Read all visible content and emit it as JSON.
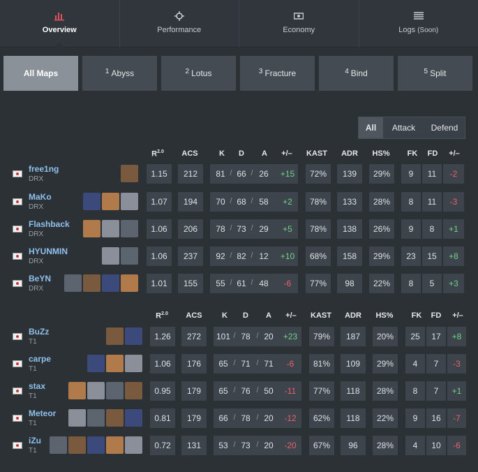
{
  "tabs": [
    {
      "label": "Overview"
    },
    {
      "label": "Performance"
    },
    {
      "label": "Economy"
    },
    {
      "label": "Logs",
      "note": "(Soon)"
    }
  ],
  "maps": [
    {
      "label": "All Maps"
    },
    {
      "num": "1",
      "label": "Abyss"
    },
    {
      "num": "2",
      "label": "Lotus"
    },
    {
      "num": "3",
      "label": "Fracture"
    },
    {
      "num": "4",
      "label": "Bind"
    },
    {
      "num": "5",
      "label": "Split"
    }
  ],
  "sides": [
    "All",
    "Attack",
    "Defend"
  ],
  "columns": [
    {
      "label": "R",
      "sup": "2.0"
    },
    "ACS",
    "K",
    "D",
    "A",
    "+/–",
    "KAST",
    "ADR",
    "HS%",
    "FK",
    "FD",
    "+/–"
  ],
  "kda_separator": "/",
  "teams": [
    {
      "players": [
        {
          "name": "free1ng",
          "team": "DRX",
          "stats": [
            "1.15",
            "212",
            "81",
            "66",
            "26",
            "+15",
            "72%",
            "139",
            "29%",
            "9",
            "11",
            "-2"
          ]
        },
        {
          "name": "MaKo",
          "team": "DRX",
          "stats": [
            "1.07",
            "194",
            "70",
            "68",
            "58",
            "+2",
            "78%",
            "133",
            "28%",
            "8",
            "11",
            "-3"
          ]
        },
        {
          "name": "Flashback",
          "team": "DRX",
          "stats": [
            "1.06",
            "206",
            "78",
            "73",
            "29",
            "+5",
            "78%",
            "138",
            "26%",
            "9",
            "8",
            "+1"
          ]
        },
        {
          "name": "HYUNMIN",
          "team": "DRX",
          "stats": [
            "1.06",
            "237",
            "92",
            "82",
            "12",
            "+10",
            "68%",
            "158",
            "29%",
            "23",
            "15",
            "+8"
          ]
        },
        {
          "name": "BeYN",
          "team": "DRX",
          "stats": [
            "1.01",
            "155",
            "55",
            "61",
            "48",
            "-6",
            "77%",
            "98",
            "22%",
            "8",
            "5",
            "+3"
          ]
        }
      ]
    },
    {
      "players": [
        {
          "name": "BuZz",
          "team": "T1",
          "stats": [
            "1.26",
            "272",
            "101",
            "78",
            "20",
            "+23",
            "79%",
            "187",
            "20%",
            "25",
            "17",
            "+8"
          ]
        },
        {
          "name": "carpe",
          "team": "T1",
          "stats": [
            "1.06",
            "176",
            "65",
            "71",
            "71",
            "-6",
            "81%",
            "109",
            "29%",
            "4",
            "7",
            "-3"
          ]
        },
        {
          "name": "stax",
          "team": "T1",
          "stats": [
            "0.95",
            "179",
            "65",
            "76",
            "50",
            "-11",
            "77%",
            "118",
            "28%",
            "8",
            "7",
            "+1"
          ]
        },
        {
          "name": "Meteor",
          "team": "T1",
          "stats": [
            "0.81",
            "179",
            "66",
            "78",
            "20",
            "-12",
            "62%",
            "118",
            "22%",
            "9",
            "16",
            "-7"
          ]
        },
        {
          "name": "iZu",
          "team": "T1",
          "stats": [
            "0.72",
            "131",
            "53",
            "73",
            "20",
            "-20",
            "67%",
            "96",
            "28%",
            "4",
            "10",
            "-6"
          ]
        }
      ]
    }
  ]
}
